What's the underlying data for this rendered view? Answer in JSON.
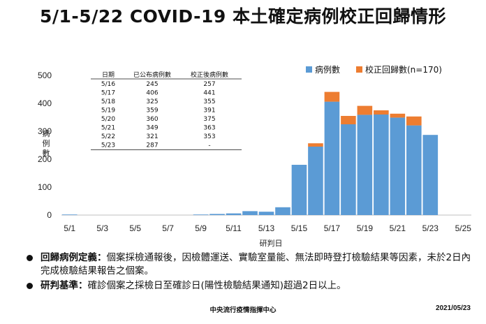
{
  "title": "5/1-5/22 COVID-19 本土確定病例校正回歸情形",
  "chart_data": {
    "type": "bar",
    "stacked": true,
    "ylabel": "病例數",
    "xlabel": "研判日",
    "ylim": [
      0,
      500
    ],
    "yticks": [
      0,
      100,
      200,
      300,
      400,
      500
    ],
    "xlim_days": [
      1,
      25
    ],
    "xticks": [
      "5/1",
      "5/3",
      "5/5",
      "5/7",
      "5/9",
      "5/11",
      "5/13",
      "5/15",
      "5/17",
      "5/19",
      "5/21",
      "5/23",
      "5/25"
    ],
    "x": [
      "5/1",
      "5/2",
      "5/3",
      "5/4",
      "5/5",
      "5/6",
      "5/7",
      "5/8",
      "5/9",
      "5/10",
      "5/11",
      "5/12",
      "5/13",
      "5/14",
      "5/15",
      "5/16",
      "5/17",
      "5/18",
      "5/19",
      "5/20",
      "5/21",
      "5/22",
      "5/23"
    ],
    "series": [
      {
        "name": "病例數",
        "color": "#5b9bd5",
        "values": [
          2,
          0,
          0,
          0,
          0,
          0,
          0,
          0,
          2,
          4,
          6,
          14,
          12,
          28,
          180,
          245,
          406,
          325,
          359,
          360,
          349,
          321,
          287
        ]
      },
      {
        "name": "校正回歸數(n=170)",
        "color": "#ed7d31",
        "values": [
          0,
          0,
          0,
          0,
          0,
          0,
          0,
          0,
          0,
          0,
          0,
          0,
          0,
          0,
          0,
          12,
          35,
          30,
          32,
          15,
          14,
          32,
          0
        ]
      }
    ],
    "legend_position": "top-right",
    "grid": false
  },
  "table": {
    "headers": [
      "日期",
      "已公布病例數",
      "校正後病例數"
    ],
    "rows": [
      [
        "5/16",
        "245",
        "257"
      ],
      [
        "5/17",
        "406",
        "441"
      ],
      [
        "5/18",
        "325",
        "355"
      ],
      [
        "5/19",
        "359",
        "391"
      ],
      [
        "5/20",
        "360",
        "375"
      ],
      [
        "5/21",
        "349",
        "363"
      ],
      [
        "5/22",
        "321",
        "353"
      ],
      [
        "5/23",
        "287",
        "-"
      ]
    ]
  },
  "notes": [
    {
      "bold": "回歸病例定義：",
      "text": "個案採檢通報後，因檢體運送、實驗室量能、無法即時登打檢驗結果等因素，未於2日內完成檢驗結果報告之個案。"
    },
    {
      "bold": "研判基準：",
      "text": "確診個案之採檢日至確診日(陽性檢驗結果通知)超過2日以上。"
    }
  ],
  "footer": {
    "center": "中央流行疫情指揮中心",
    "date": "2021/05/23"
  }
}
